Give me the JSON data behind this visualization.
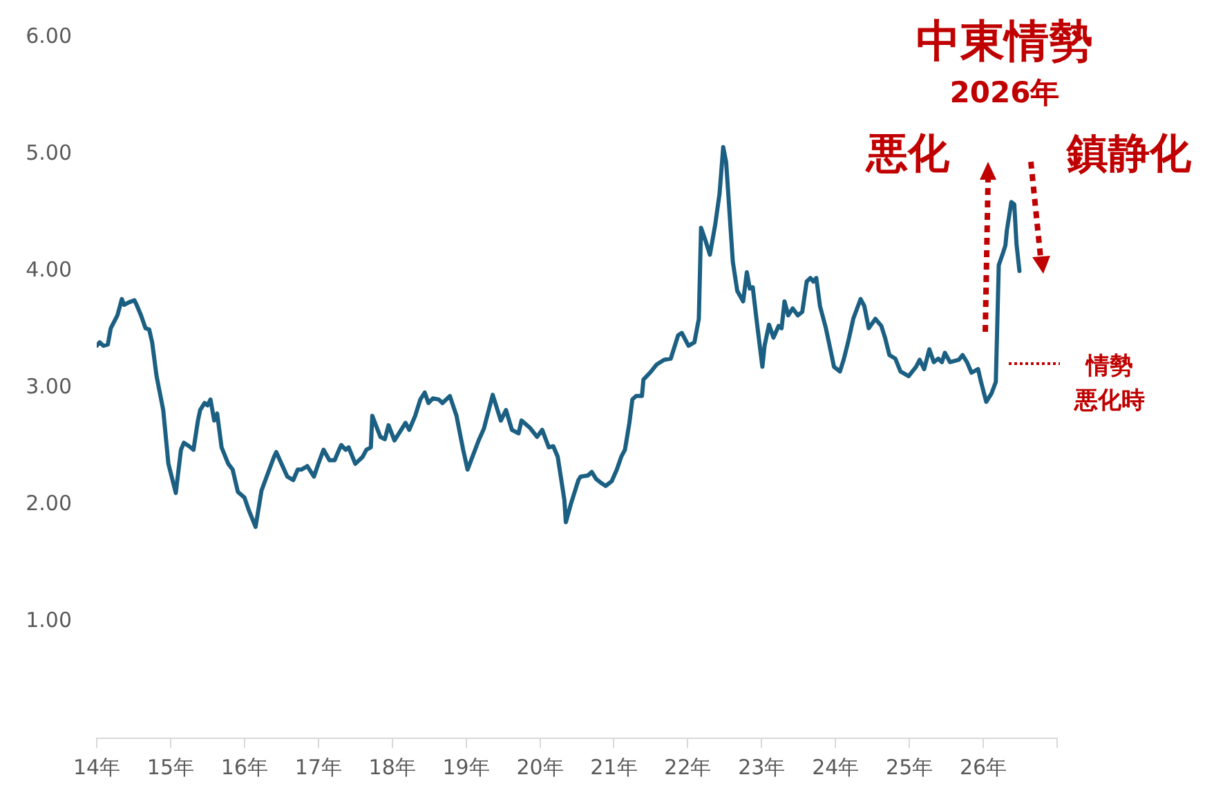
{
  "chart_data": {
    "type": "line",
    "annotations": [
      "中東情勢",
      "2026年",
      "悪化",
      "鎮静化",
      "情勢",
      "悪化時"
    ],
    "x": [
      14.0,
      14.04,
      14.09,
      14.15,
      14.19,
      14.28,
      14.34,
      14.37,
      14.43,
      14.51,
      14.54,
      14.6,
      14.66,
      14.71,
      14.75,
      14.81,
      14.9,
      14.97,
      15.07,
      15.14,
      15.18,
      15.25,
      15.31,
      15.37,
      15.4,
      15.46,
      15.5,
      15.54,
      15.59,
      15.63,
      15.69,
      15.78,
      15.84,
      15.91,
      16.0,
      16.06,
      16.15,
      16.23,
      16.3,
      16.4,
      16.43,
      16.58,
      16.66,
      16.72,
      16.77,
      16.85,
      16.94,
      17.0,
      17.07,
      17.15,
      17.22,
      17.28,
      17.31,
      17.37,
      17.41,
      17.5,
      17.6,
      17.65,
      17.71,
      17.73,
      17.84,
      17.9,
      17.95,
      18.03,
      18.12,
      18.18,
      18.23,
      18.31,
      18.38,
      18.44,
      18.49,
      18.55,
      18.63,
      18.68,
      18.78,
      18.87,
      18.96,
      19.02,
      19.17,
      19.24,
      19.36,
      19.47,
      19.54,
      19.62,
      19.71,
      19.75,
      19.86,
      19.96,
      20.03,
      20.12,
      20.18,
      20.24,
      20.33,
      20.35,
      20.42,
      20.52,
      20.55,
      20.65,
      20.7,
      20.76,
      20.84,
      20.89,
      20.97,
      21.04,
      21.1,
      21.15,
      21.21,
      21.25,
      21.3,
      21.38,
      21.4,
      21.49,
      21.58,
      21.68,
      21.77,
      21.87,
      21.92,
      22.01,
      22.09,
      22.15,
      22.18,
      22.24,
      22.3,
      22.37,
      22.43,
      22.48,
      22.52,
      22.61,
      22.67,
      22.75,
      22.8,
      22.84,
      22.88,
      22.93,
      23.01,
      23.04,
      23.1,
      23.16,
      23.23,
      23.27,
      23.31,
      23.36,
      23.42,
      23.49,
      23.55,
      23.61,
      23.66,
      23.7,
      23.74,
      23.79,
      23.87,
      23.93,
      23.98,
      24.06,
      24.11,
      24.17,
      24.24,
      24.34,
      24.39,
      24.45,
      24.54,
      24.62,
      24.67,
      24.73,
      24.81,
      24.88,
      24.99,
      25.09,
      25.14,
      25.2,
      25.27,
      25.33,
      25.39,
      25.44,
      25.48,
      25.55,
      25.67,
      25.72,
      25.78,
      25.84,
      25.93,
      25.97,
      26.04,
      26.11,
      26.17,
      26.21,
      26.27,
      26.3,
      26.32,
      26.38,
      26.42,
      26.45,
      26.49
    ],
    "series": [
      {
        "color": "#1b5f82",
        "values": [
          3.36,
          3.39,
          3.36,
          3.37,
          3.51,
          3.62,
          3.76,
          3.71,
          3.73,
          3.75,
          3.71,
          3.62,
          3.51,
          3.5,
          3.39,
          3.1,
          2.81,
          2.35,
          2.1,
          2.47,
          2.53,
          2.5,
          2.47,
          2.72,
          2.81,
          2.87,
          2.85,
          2.9,
          2.72,
          2.78,
          2.49,
          2.35,
          2.3,
          2.11,
          2.06,
          1.95,
          1.81,
          2.12,
          2.24,
          2.41,
          2.45,
          2.24,
          2.21,
          2.3,
          2.3,
          2.33,
          2.24,
          2.35,
          2.47,
          2.38,
          2.38,
          2.47,
          2.51,
          2.47,
          2.49,
          2.35,
          2.41,
          2.47,
          2.49,
          2.76,
          2.58,
          2.56,
          2.68,
          2.55,
          2.64,
          2.7,
          2.64,
          2.76,
          2.9,
          2.96,
          2.87,
          2.91,
          2.9,
          2.87,
          2.93,
          2.76,
          2.47,
          2.3,
          2.55,
          2.65,
          2.94,
          2.72,
          2.81,
          2.64,
          2.61,
          2.72,
          2.66,
          2.58,
          2.64,
          2.49,
          2.5,
          2.41,
          2.04,
          1.85,
          2.01,
          2.21,
          2.24,
          2.25,
          2.28,
          2.22,
          2.18,
          2.16,
          2.2,
          2.3,
          2.41,
          2.47,
          2.7,
          2.9,
          2.93,
          2.93,
          3.07,
          3.13,
          3.2,
          3.24,
          3.25,
          3.45,
          3.47,
          3.36,
          3.39,
          3.59,
          4.37,
          4.26,
          4.14,
          4.39,
          4.66,
          5.06,
          4.93,
          4.08,
          3.83,
          3.74,
          3.99,
          3.85,
          3.86,
          3.59,
          3.18,
          3.36,
          3.54,
          3.43,
          3.53,
          3.51,
          3.74,
          3.62,
          3.68,
          3.62,
          3.65,
          3.91,
          3.94,
          3.91,
          3.94,
          3.7,
          3.51,
          3.33,
          3.18,
          3.14,
          3.24,
          3.39,
          3.59,
          3.76,
          3.7,
          3.51,
          3.59,
          3.53,
          3.43,
          3.28,
          3.25,
          3.14,
          3.1,
          3.18,
          3.24,
          3.16,
          3.33,
          3.22,
          3.25,
          3.22,
          3.3,
          3.22,
          3.24,
          3.28,
          3.22,
          3.13,
          3.16,
          3.05,
          2.88,
          2.95,
          3.05,
          4.05,
          4.16,
          4.22,
          4.35,
          4.59,
          4.57,
          4.23,
          4.0
        ]
      }
    ],
    "marker": "none",
    "xlim": [
      14,
      27
    ],
    "xticks": [
      {
        "value": 14,
        "label": "14年"
      },
      {
        "value": 15,
        "label": "15年"
      },
      {
        "value": 16,
        "label": "16年"
      },
      {
        "value": 17,
        "label": "17年"
      },
      {
        "value": 18,
        "label": "18年"
      },
      {
        "value": 19,
        "label": "19年"
      },
      {
        "value": 20,
        "label": "20年"
      },
      {
        "value": 21,
        "label": "21年"
      },
      {
        "value": 22,
        "label": "22年"
      },
      {
        "value": 23,
        "label": "23年"
      },
      {
        "value": 24,
        "label": "24年"
      },
      {
        "value": 25,
        "label": "25年"
      },
      {
        "value": 26,
        "label": "26年"
      },
      {
        "value": 27,
        "label": null
      }
    ],
    "ylim": [
      0,
      6
    ],
    "yticks": [
      {
        "value": 1,
        "label": "1.00"
      },
      {
        "value": 2,
        "label": "2.00"
      },
      {
        "value": 3,
        "label": "3.00"
      },
      {
        "value": 4,
        "label": "4.00"
      },
      {
        "value": 5,
        "label": "5.00"
      },
      {
        "value": 6,
        "label": "6.00"
      }
    ]
  }
}
